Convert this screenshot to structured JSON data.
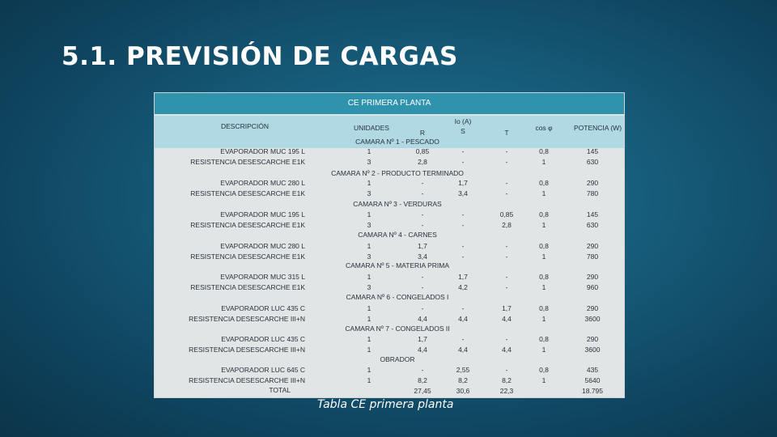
{
  "slide": {
    "title": "5.1. PREVISIÓN DE CARGAS",
    "caption": "Tabla CE primera planta"
  },
  "table": {
    "header": "CE PRIMERA PLANTA",
    "columns": {
      "descripcion": "DESCRIPCIÓN",
      "unidades": "UNIDADES",
      "io": "Io (A)",
      "r": "R",
      "s": "S",
      "t": "T",
      "cos": "cos φ",
      "potencia": "POTENCIA (W)"
    },
    "sections": [
      "CAMARA Nº 1 - PESCADO",
      "CAMARA Nº 2 - PRODUCTO TERMINADO",
      "CAMARA Nº 3 - VERDURAS",
      "CAMARA Nº 4 - CARNES",
      "CAMARA Nº 5 - MATERIA PRIMA",
      "CAMARA Nº 6 - CONGELADOS I",
      "CAMARA Nº 7 - CONGELADOS II",
      "OBRADOR"
    ],
    "rows": [
      [
        "EVAPORADOR MUC 195 L",
        "1",
        "0,85",
        "-",
        "-",
        "0,8",
        "145"
      ],
      [
        "RESISTENCIA DESESCARCHE E1K",
        "3",
        "2,8",
        "-",
        "-",
        "1",
        "630"
      ],
      [
        "EVAPORADOR MUC 280 L",
        "1",
        "-",
        "1,7",
        "-",
        "0,8",
        "290"
      ],
      [
        "RESISTENCIA DESESCARCHE E1K",
        "3",
        "-",
        "3,4",
        "-",
        "1",
        "780"
      ],
      [
        "EVAPORADOR MUC 195 L",
        "1",
        "-",
        "-",
        "0,85",
        "0,8",
        "145"
      ],
      [
        "RESISTENCIA DESESCARCHE E1K",
        "3",
        "-",
        "-",
        "2,8",
        "1",
        "630"
      ],
      [
        "EVAPORADOR MUC 280 L",
        "1",
        "1,7",
        "-",
        "-",
        "0,8",
        "290"
      ],
      [
        "RESISTENCIA DESESCARCHE E1K",
        "3",
        "3,4",
        "-",
        "-",
        "1",
        "780"
      ],
      [
        "EVAPORADOR MUC 315 L",
        "1",
        "-",
        "1,7",
        "-",
        "0,8",
        "290"
      ],
      [
        "RESISTENCIA DESESCARCHE E1K",
        "3",
        "-",
        "4,2",
        "-",
        "1",
        "960"
      ],
      [
        "EVAPORADOR LUC 435 C",
        "1",
        "-",
        "-",
        "1,7",
        "0,8",
        "290"
      ],
      [
        "RESISTENCIA DESESCARCHE III+N",
        "1",
        "4,4",
        "4,4",
        "4,4",
        "1",
        "3600"
      ],
      [
        "EVAPORADOR LUC 435 C",
        "1",
        "1,7",
        "-",
        "-",
        "0,8",
        "290"
      ],
      [
        "RESISTENCIA DESESCARCHE III+N",
        "1",
        "4,4",
        "4,4",
        "4,4",
        "1",
        "3600"
      ],
      [
        "EVAPORADOR LUC 645 C",
        "1",
        "-",
        "2,55",
        "-",
        "0,8",
        "435"
      ],
      [
        "RESISTENCIA DESESCARCHE III+N",
        "1",
        "8,2",
        "8,2",
        "8,2",
        "1",
        "5640"
      ]
    ],
    "total": {
      "label": "TOTAL",
      "r": "27,45",
      "s": "30,6",
      "t": "22,3",
      "potencia": "18.795"
    }
  }
}
